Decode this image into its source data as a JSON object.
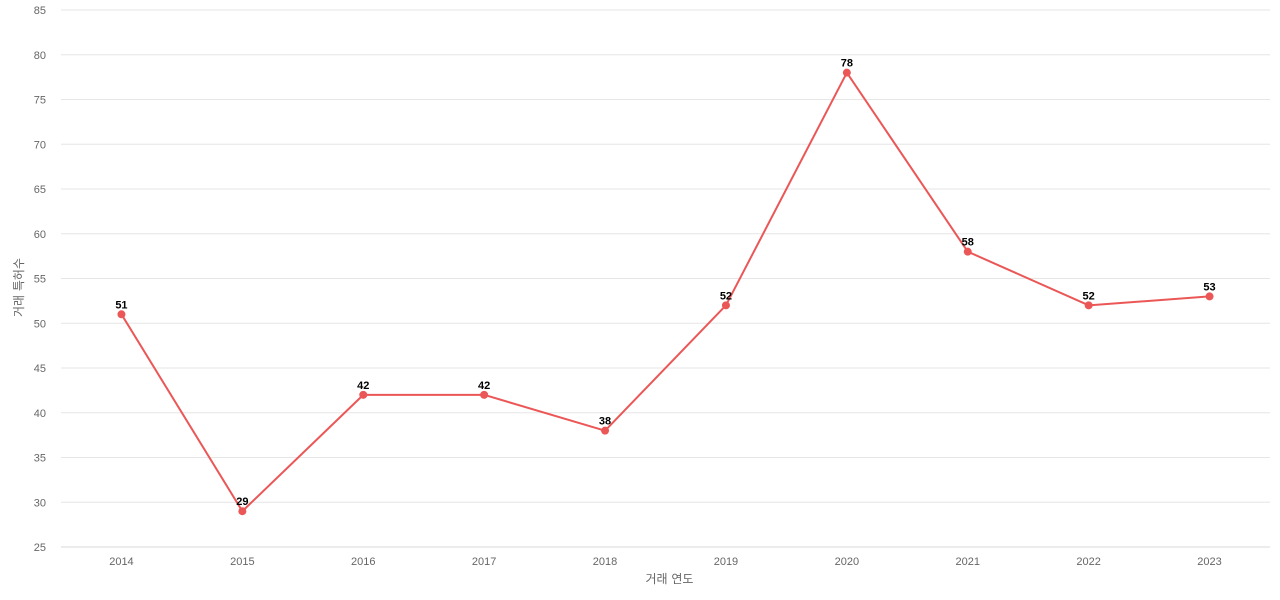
{
  "chart_data": {
    "type": "line",
    "title": "",
    "xlabel": "거래 연도",
    "ylabel": "거래 특허수",
    "x": [
      "2014",
      "2015",
      "2016",
      "2017",
      "2018",
      "2019",
      "2020",
      "2021",
      "2022",
      "2023"
    ],
    "series": [
      {
        "values": [
          51,
          29,
          42,
          42,
          38,
          52,
          78,
          58,
          52,
          53
        ],
        "color": "#eb5757"
      }
    ],
    "ylim": [
      25,
      85
    ],
    "yticks": [
      25,
      30,
      35,
      40,
      45,
      50,
      55,
      60,
      65,
      70,
      75,
      80,
      85
    ],
    "grid": true,
    "legend": "none",
    "data_labels": true
  }
}
